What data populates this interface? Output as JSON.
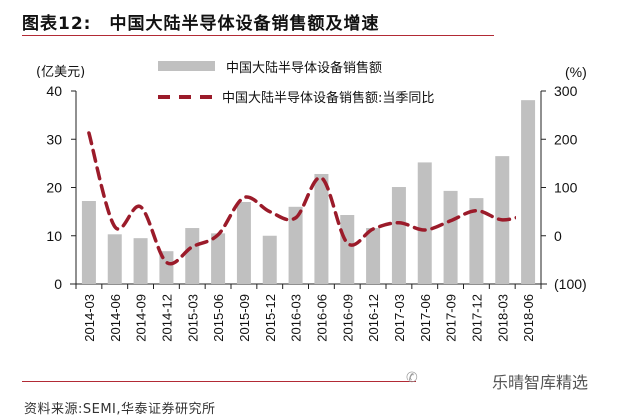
{
  "header": {
    "figure_label": "图表12:",
    "title": "中国大陆半导体设备销售额及增速"
  },
  "footer": {
    "source": "资料来源:SEMI,华泰证券研究所",
    "watermark": "乐晴智库精选",
    "watermark_icon": "wechat-icon"
  },
  "colors": {
    "bar": "#c0c0c0",
    "line": "#9b1b2a",
    "rule": "#b22a35",
    "axis": "#222222"
  },
  "chart_data": {
    "type": "bar",
    "title": "中国大陆半导体设备销售额及增速",
    "categories": [
      "2014-03",
      "2014-06",
      "2014-09",
      "2014-12",
      "2015-03",
      "2015-06",
      "2015-09",
      "2015-12",
      "2016-03",
      "2016-06",
      "2016-09",
      "2016-12",
      "2017-03",
      "2017-06",
      "2017-09",
      "2017-12",
      "2018-03",
      "2018-06"
    ],
    "series": [
      {
        "name": "中国大陆半导体设备销售额",
        "type": "bar",
        "axis": "left",
        "values": [
          17.2,
          10.3,
          9.5,
          6.8,
          11.6,
          10.5,
          17.0,
          10.0,
          16.0,
          22.8,
          14.3,
          11.6,
          20.1,
          25.2,
          19.3,
          17.8,
          26.5,
          38.1
        ]
      },
      {
        "name": "中国大陆半导体设备销售额:当季同比",
        "type": "line",
        "style": "dashed",
        "axis": "right",
        "values": [
          213,
          19,
          60,
          -55,
          -23,
          2,
          79,
          50,
          37,
          120,
          -15,
          14,
          27,
          12,
          31,
          52,
          33,
          45
        ]
      }
    ],
    "left_axis": {
      "label": "(亿美元)",
      "range": [
        0,
        40
      ],
      "ticks": [
        0,
        10,
        20,
        30,
        40
      ]
    },
    "right_axis": {
      "label": "(%)",
      "range": [
        -100,
        300
      ],
      "ticks": [
        -100,
        0,
        100,
        200,
        300
      ],
      "tick_labels": [
        "(100)",
        "0",
        "100",
        "200",
        "300"
      ]
    },
    "xlabel": "",
    "grid": false,
    "legend_position": "top-center"
  }
}
